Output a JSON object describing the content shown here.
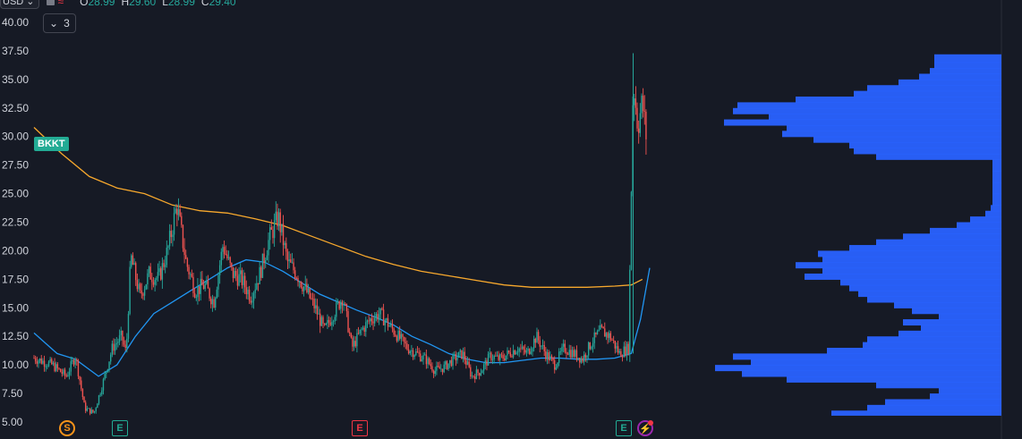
{
  "header": {
    "symbol_fragment": "USD",
    "ohlc": [
      {
        "k": "O",
        "v": "28.99"
      },
      {
        "k": "H",
        "v": "29.60"
      },
      {
        "k": "L",
        "v": "28.99"
      },
      {
        "k": "C",
        "v": "29.40"
      }
    ],
    "collapse_count": "3"
  },
  "ticker": "BKKT",
  "events": [
    {
      "label": "S",
      "kind": "split"
    },
    {
      "label": "E",
      "kind": "earnings"
    },
    {
      "label": "E",
      "kind": "earnings-red"
    },
    {
      "label": "E",
      "kind": "earnings"
    },
    {
      "label": "⚡",
      "kind": "dividend-flash"
    }
  ],
  "colors": {
    "background": "#161a25",
    "up": "#26a69a",
    "down": "#ef5350",
    "ma_short": "#2196f3",
    "ma_long": "#f7a82d",
    "volume_profile": "#2962ff",
    "badge": "#22ab94"
  },
  "chart_data": {
    "type": "candlestick",
    "y_ticks": [
      "40.00",
      "37.50",
      "35.00",
      "32.50",
      "30.00",
      "27.50",
      "25.00",
      "22.50",
      "20.00",
      "17.50",
      "15.00",
      "12.50",
      "10.00",
      "7.50",
      "5.00"
    ],
    "ylim": [
      5.0,
      40.0
    ],
    "price_path": [
      [
        0,
        10.6
      ],
      [
        20,
        10.0
      ],
      [
        35,
        9.0
      ],
      [
        45,
        10.8
      ],
      [
        55,
        6.2
      ],
      [
        65,
        5.8
      ],
      [
        75,
        8.5
      ],
      [
        85,
        11.5
      ],
      [
        95,
        12.5
      ],
      [
        100,
        11.0
      ],
      [
        105,
        19.5
      ],
      [
        115,
        16.0
      ],
      [
        125,
        18.0
      ],
      [
        135,
        17.5
      ],
      [
        145,
        20.0
      ],
      [
        155,
        24.0
      ],
      [
        165,
        19.0
      ],
      [
        175,
        16.5
      ],
      [
        185,
        17.0
      ],
      [
        195,
        15.5
      ],
      [
        205,
        20.5
      ],
      [
        215,
        18.0
      ],
      [
        225,
        17.5
      ],
      [
        235,
        16.0
      ],
      [
        245,
        18.0
      ],
      [
        255,
        21.0
      ],
      [
        265,
        23.0
      ],
      [
        275,
        19.0
      ],
      [
        285,
        18.0
      ],
      [
        295,
        16.5
      ],
      [
        305,
        15.0
      ],
      [
        315,
        13.0
      ],
      [
        325,
        14.5
      ],
      [
        335,
        16.0
      ],
      [
        345,
        11.5
      ],
      [
        355,
        13.0
      ],
      [
        365,
        14.0
      ],
      [
        375,
        14.5
      ],
      [
        385,
        13.5
      ],
      [
        395,
        12.5
      ],
      [
        405,
        11.5
      ],
      [
        415,
        11.0
      ],
      [
        425,
        10.5
      ],
      [
        435,
        9.5
      ],
      [
        445,
        9.8
      ],
      [
        455,
        10.5
      ],
      [
        465,
        11.0
      ],
      [
        475,
        9.0
      ],
      [
        485,
        9.5
      ],
      [
        495,
        10.8
      ],
      [
        505,
        10.5
      ],
      [
        515,
        11.0
      ],
      [
        525,
        11.5
      ],
      [
        535,
        11.0
      ],
      [
        545,
        12.5
      ],
      [
        555,
        11.0
      ],
      [
        565,
        10.0
      ],
      [
        575,
        11.5
      ],
      [
        585,
        11.0
      ],
      [
        595,
        10.5
      ],
      [
        605,
        12.0
      ],
      [
        615,
        13.0
      ],
      [
        625,
        12.5
      ],
      [
        635,
        11.0
      ],
      [
        645,
        11.5
      ],
      [
        650,
        35.0
      ],
      [
        655,
        31.0
      ],
      [
        660,
        33.0
      ],
      [
        665,
        29.4
      ]
    ],
    "ma_short": [
      [
        0,
        12.8
      ],
      [
        25,
        11.0
      ],
      [
        45,
        10.5
      ],
      [
        70,
        9.0
      ],
      [
        90,
        10.0
      ],
      [
        110,
        12.5
      ],
      [
        130,
        14.5
      ],
      [
        150,
        15.5
      ],
      [
        170,
        16.5
      ],
      [
        190,
        17.5
      ],
      [
        210,
        18.5
      ],
      [
        230,
        19.2
      ],
      [
        250,
        19.0
      ],
      [
        270,
        18.2
      ],
      [
        290,
        17.2
      ],
      [
        310,
        16.2
      ],
      [
        330,
        15.5
      ],
      [
        350,
        14.8
      ],
      [
        370,
        14.2
      ],
      [
        390,
        13.5
      ],
      [
        410,
        12.5
      ],
      [
        430,
        11.8
      ],
      [
        450,
        11.0
      ],
      [
        470,
        10.5
      ],
      [
        490,
        10.2
      ],
      [
        510,
        10.2
      ],
      [
        530,
        10.4
      ],
      [
        550,
        10.6
      ],
      [
        570,
        10.6
      ],
      [
        590,
        10.5
      ],
      [
        610,
        10.5
      ],
      [
        630,
        10.6
      ],
      [
        648,
        11.0
      ],
      [
        658,
        14.0
      ],
      [
        668,
        18.5
      ]
    ],
    "ma_long": [
      [
        0,
        30.8
      ],
      [
        30,
        28.5
      ],
      [
        60,
        26.5
      ],
      [
        90,
        25.5
      ],
      [
        120,
        25.0
      ],
      [
        150,
        24.0
      ],
      [
        180,
        23.5
      ],
      [
        210,
        23.3
      ],
      [
        240,
        22.8
      ],
      [
        270,
        22.2
      ],
      [
        300,
        21.3
      ],
      [
        330,
        20.4
      ],
      [
        360,
        19.5
      ],
      [
        390,
        18.8
      ],
      [
        420,
        18.2
      ],
      [
        450,
        17.8
      ],
      [
        480,
        17.4
      ],
      [
        510,
        17.0
      ],
      [
        540,
        16.8
      ],
      [
        570,
        16.8
      ],
      [
        600,
        16.8
      ],
      [
        630,
        16.9
      ],
      [
        648,
        17.0
      ],
      [
        660,
        17.5
      ]
    ],
    "volume_profile_note": "",
    "volume_profile": [
      [
        37.2,
        75
      ],
      [
        36.5,
        75
      ],
      [
        36.0,
        80
      ],
      [
        35.5,
        92
      ],
      [
        35.0,
        115
      ],
      [
        34.5,
        150
      ],
      [
        34.0,
        165
      ],
      [
        33.5,
        230
      ],
      [
        33.0,
        295
      ],
      [
        32.5,
        300
      ],
      [
        32.0,
        260
      ],
      [
        31.5,
        310
      ],
      [
        31.0,
        240
      ],
      [
        30.5,
        245
      ],
      [
        30.0,
        210
      ],
      [
        29.5,
        170
      ],
      [
        29.0,
        165
      ],
      [
        28.5,
        140
      ],
      [
        28.0,
        10
      ],
      [
        27.0,
        10
      ],
      [
        26.0,
        10
      ],
      [
        25.0,
        10
      ],
      [
        24.0,
        12
      ],
      [
        23.5,
        18
      ],
      [
        23.0,
        35
      ],
      [
        22.5,
        50
      ],
      [
        22.0,
        80
      ],
      [
        21.5,
        110
      ],
      [
        21.0,
        140
      ],
      [
        20.5,
        170
      ],
      [
        20.0,
        205
      ],
      [
        19.5,
        200
      ],
      [
        19.0,
        230
      ],
      [
        18.5,
        200
      ],
      [
        18.0,
        220
      ],
      [
        17.5,
        180
      ],
      [
        17.0,
        170
      ],
      [
        16.5,
        160
      ],
      [
        16.0,
        150
      ],
      [
        15.5,
        120
      ],
      [
        15.0,
        100
      ],
      [
        14.5,
        70
      ],
      [
        14.0,
        110
      ],
      [
        13.5,
        90
      ],
      [
        13.0,
        115
      ],
      [
        12.5,
        150
      ],
      [
        12.0,
        155
      ],
      [
        11.5,
        195
      ],
      [
        11.0,
        300
      ],
      [
        10.5,
        280
      ],
      [
        10.0,
        320
      ],
      [
        9.5,
        290
      ],
      [
        9.0,
        240
      ],
      [
        8.5,
        140
      ],
      [
        8.0,
        70
      ],
      [
        7.5,
        80
      ],
      [
        7.0,
        130
      ],
      [
        6.5,
        150
      ],
      [
        6.0,
        190
      ],
      [
        5.6,
        180
      ]
    ]
  }
}
